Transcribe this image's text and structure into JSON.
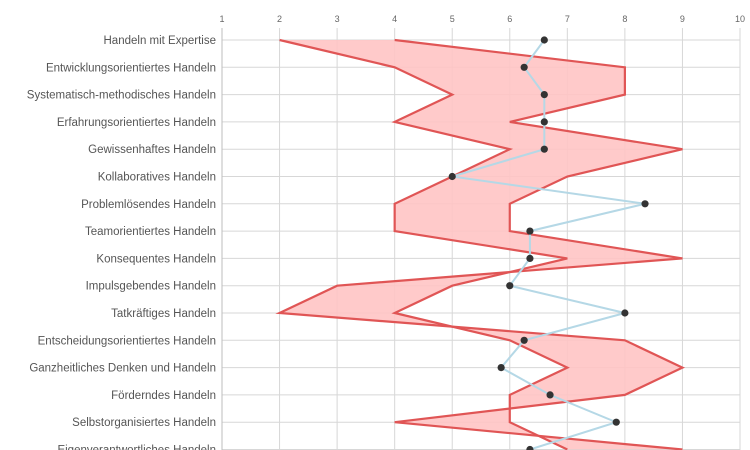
{
  "chart_data": {
    "type": "line",
    "orientation": "horizontal",
    "xlim": [
      1,
      10
    ],
    "x_ticks": [
      "1",
      "2",
      "3",
      "4",
      "5",
      "6",
      "7",
      "8",
      "9",
      "10"
    ],
    "grid": true,
    "categories": [
      "Handeln mit Expertise",
      "Entwicklungsorientiertes Handeln",
      "Systematisch-methodisches Handeln",
      "Erfahrungsorientiertes Handeln",
      "Gewissenhaftes Handeln",
      "Kollaboratives Handeln",
      "Problemlösendes Handeln",
      "Teamorientiertes Handeln",
      "Konsequentes Handeln",
      "Impulsgebendes Handeln",
      "Tatkräftiges Handeln",
      "Entscheidungsorientiertes Handeln",
      "Ganzheitliches Denken und Handeln",
      "Förderndes Handeln",
      "Selbstorganisiertes Handeln",
      "Eigenverantwortliches Handeln"
    ],
    "series": [
      {
        "role": "range-lower",
        "color": "#e05555",
        "values": [
          2,
          4,
          5,
          4,
          6,
          5,
          4,
          4,
          7,
          5,
          4,
          6,
          7,
          6,
          6,
          7
        ]
      },
      {
        "role": "range-upper",
        "color": "#e05555",
        "values": [
          4,
          8,
          8,
          6,
          9,
          7,
          6,
          6,
          9,
          3,
          2,
          8,
          9,
          8,
          4,
          9
        ]
      },
      {
        "role": "points",
        "color": "#b5d8e6",
        "marker_color": "#333333",
        "values": [
          6.6,
          6.25,
          6.6,
          6.6,
          6.6,
          5.0,
          8.35,
          6.35,
          6.35,
          6.0,
          8.0,
          6.25,
          5.85,
          6.7,
          7.85,
          6.35
        ]
      }
    ],
    "range_fill": "#ffc4c4"
  }
}
